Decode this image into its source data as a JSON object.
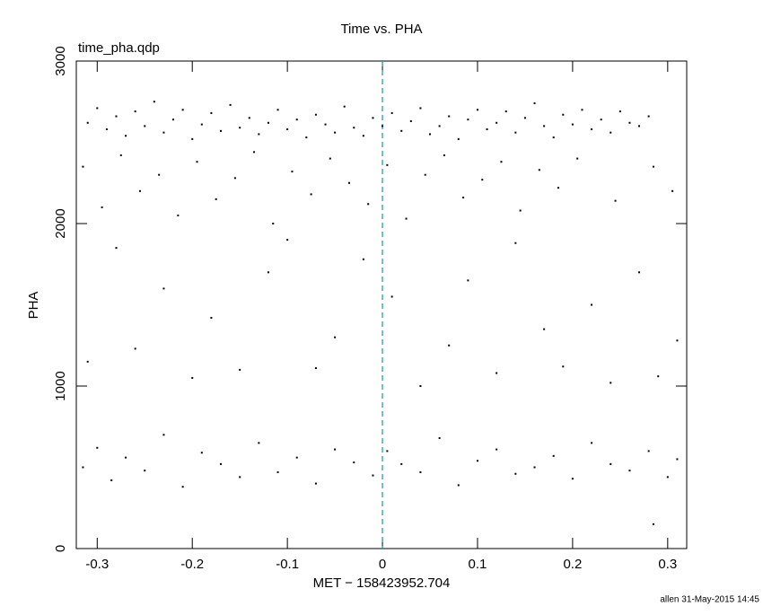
{
  "chart_data": {
    "type": "scatter",
    "title": "Time vs. PHA",
    "plot_label": "time_pha.qdp",
    "xlabel": "MET − 158423952.704",
    "ylabel": "PHA",
    "footer": "allen 31-May-2015 14:45",
    "xlim": [
      -0.322,
      0.32
    ],
    "ylim": [
      0,
      3000
    ],
    "xticks": [
      -0.3,
      -0.2,
      -0.1,
      0,
      0.1,
      0.2,
      0.3
    ],
    "yticks": [
      0,
      1000,
      2000,
      3000
    ],
    "vline": 0,
    "vline_color": "#1a9a9a",
    "color": "#000000",
    "series": [
      {
        "x": [
          -0.31,
          -0.3,
          -0.29,
          -0.28,
          -0.27,
          -0.26,
          -0.25,
          -0.24,
          -0.23,
          -0.22,
          -0.21,
          -0.2,
          -0.19,
          -0.18,
          -0.17,
          -0.16,
          -0.15,
          -0.14,
          -0.13,
          -0.12,
          -0.11,
          -0.1,
          -0.09,
          -0.08,
          -0.07,
          -0.06,
          -0.05,
          -0.04,
          -0.03,
          -0.02,
          -0.01,
          0.0,
          0.01,
          0.02,
          0.03,
          0.04,
          0.05,
          0.06,
          0.07,
          0.08,
          0.09,
          0.1,
          0.11,
          0.12,
          0.13,
          0.14,
          0.15,
          0.16,
          0.17,
          0.18,
          0.19,
          0.2,
          0.21,
          0.22,
          0.23,
          0.24,
          0.25,
          0.26,
          0.27,
          0.28,
          -0.315,
          -0.295,
          -0.275,
          -0.255,
          -0.235,
          -0.215,
          -0.195,
          -0.175,
          -0.155,
          -0.135,
          -0.115,
          -0.095,
          -0.075,
          -0.055,
          -0.035,
          -0.015,
          0.005,
          0.025,
          0.045,
          0.065,
          0.085,
          0.105,
          0.125,
          0.145,
          0.165,
          0.185,
          0.205,
          0.245,
          0.285,
          0.305,
          -0.31,
          -0.28,
          -0.26,
          -0.23,
          -0.2,
          -0.18,
          -0.15,
          -0.12,
          -0.1,
          -0.07,
          -0.05,
          -0.02,
          0.01,
          0.04,
          0.07,
          0.09,
          0.12,
          0.14,
          0.17,
          0.19,
          0.22,
          0.24,
          0.27,
          0.29,
          0.31,
          -0.315,
          -0.3,
          -0.285,
          -0.27,
          -0.25,
          -0.23,
          -0.21,
          -0.19,
          -0.17,
          -0.15,
          -0.13,
          -0.11,
          -0.09,
          -0.07,
          -0.05,
          -0.03,
          -0.01,
          0.005,
          0.02,
          0.04,
          0.06,
          0.08,
          0.1,
          0.12,
          0.14,
          0.16,
          0.18,
          0.2,
          0.22,
          0.24,
          0.26,
          0.28,
          0.3,
          0.31,
          0.285
        ],
        "values": [
          2620,
          2710,
          2580,
          2660,
          2540,
          2690,
          2600,
          2750,
          2560,
          2640,
          2700,
          2520,
          2610,
          2680,
          2570,
          2730,
          2590,
          2650,
          2550,
          2620,
          2700,
          2580,
          2640,
          2530,
          2670,
          2610,
          2560,
          2720,
          2590,
          2540,
          2650,
          2600,
          2680,
          2570,
          2630,
          2710,
          2550,
          2600,
          2660,
          2520,
          2640,
          2700,
          2580,
          2620,
          2690,
          2560,
          2650,
          2740,
          2600,
          2530,
          2670,
          2610,
          2700,
          2580,
          2640,
          2560,
          2690,
          2620,
          2600,
          2660,
          2350,
          2100,
          2420,
          2200,
          2300,
          2050,
          2380,
          2150,
          2280,
          2440,
          2000,
          2320,
          2180,
          2400,
          2250,
          2120,
          2360,
          2030,
          2300,
          2420,
          2160,
          2270,
          2380,
          2080,
          2330,
          2220,
          2400,
          2140,
          2350,
          2200,
          1150,
          1850,
          1230,
          1600,
          1050,
          1420,
          1100,
          1700,
          1900,
          1110,
          1300,
          1780,
          1550,
          1000,
          1250,
          1650,
          1080,
          1880,
          1350,
          1120,
          1500,
          1020,
          1700,
          1060,
          1280,
          500,
          620,
          420,
          560,
          480,
          700,
          380,
          590,
          520,
          440,
          650,
          470,
          560,
          400,
          610,
          530,
          450,
          600,
          520,
          470,
          680,
          390,
          540,
          610,
          460,
          500,
          570,
          430,
          650,
          520,
          480,
          600,
          440,
          550,
          150
        ]
      }
    ]
  }
}
